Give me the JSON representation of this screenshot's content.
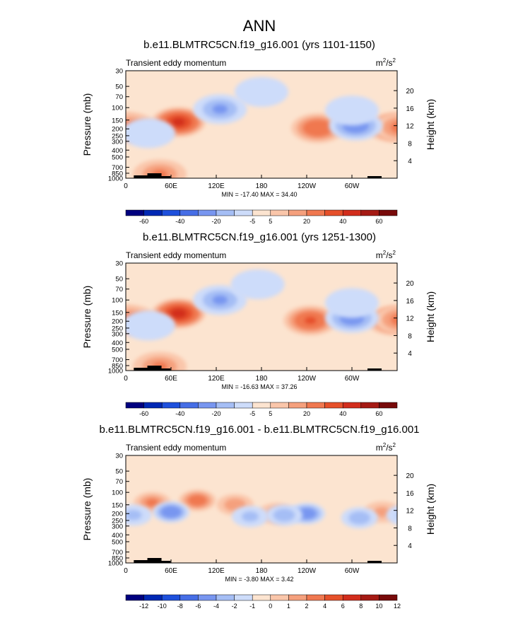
{
  "title": "ANN",
  "chart_data": [
    {
      "type": "heatmap",
      "title": "b.e11.BLMTRC5CN.f19_g16.001 (yrs 1101-1150)",
      "subtitle_left": "Transient eddy momentum",
      "units": "m",
      "units_exp": "2",
      "units_den": "/s",
      "units_den_exp": "2",
      "ylabel": "Pressure (mb)",
      "ylabel_right": "Height (km)",
      "x_ticks": [
        "0",
        "60E",
        "120E",
        "180",
        "120W",
        "60W"
      ],
      "y_ticks": [
        "30",
        "50",
        "70",
        "100",
        "150",
        "200",
        "250",
        "300",
        "400",
        "500",
        "700",
        "850",
        "1000"
      ],
      "y2_ticks": [
        "20",
        "16",
        "12",
        "8",
        "4"
      ],
      "minmax_text": "MIN = -17.40  MAX = 34.40",
      "min": -17.4,
      "max": 34.4,
      "colorbar_labels": [
        "-60",
        "-40",
        "-20",
        "-5",
        "5",
        "20",
        "40",
        "60"
      ],
      "blobs": [
        {
          "lon": 70,
          "p": 160,
          "v": 34
        },
        {
          "lon": 255,
          "p": 195,
          "v": 20
        },
        {
          "lon": 355,
          "p": 190,
          "v": 24
        },
        {
          "lon": 5,
          "p": 190,
          "v": 14
        },
        {
          "lon": 45,
          "p": 880,
          "v": 12
        },
        {
          "lon": 125,
          "p": 105,
          "v": -12
        },
        {
          "lon": 305,
          "p": 180,
          "v": -17
        },
        {
          "lon": 30,
          "p": 230,
          "v": -5
        },
        {
          "lon": 180,
          "p": 60,
          "v": -4
        },
        {
          "lon": 300,
          "p": 110,
          "v": -5
        }
      ]
    },
    {
      "type": "heatmap",
      "title": "b.e11.BLMTRC5CN.f19_g16.001 (yrs 1251-1300)",
      "subtitle_left": "Transient eddy momentum",
      "units": "m",
      "units_exp": "2",
      "units_den": "/s",
      "units_den_exp": "2",
      "ylabel": "Pressure (mb)",
      "ylabel_right": "Height (km)",
      "x_ticks": [
        "0",
        "60E",
        "120E",
        "180",
        "120W",
        "60W"
      ],
      "y_ticks": [
        "30",
        "50",
        "70",
        "100",
        "150",
        "200",
        "250",
        "300",
        "400",
        "500",
        "700",
        "850",
        "1000"
      ],
      "y2_ticks": [
        "20",
        "16",
        "12",
        "8",
        "4"
      ],
      "minmax_text": "MIN = -16.63  MAX = 37.26",
      "min": -16.63,
      "max": 37.26,
      "colorbar_labels": [
        "-60",
        "-40",
        "-20",
        "-5",
        "5",
        "20",
        "40",
        "60"
      ],
      "blobs": [
        {
          "lon": 70,
          "p": 155,
          "v": 37
        },
        {
          "lon": 245,
          "p": 195,
          "v": 22
        },
        {
          "lon": 355,
          "p": 195,
          "v": 24
        },
        {
          "lon": 5,
          "p": 190,
          "v": 14
        },
        {
          "lon": 45,
          "p": 880,
          "v": 12
        },
        {
          "lon": 125,
          "p": 100,
          "v": -12
        },
        {
          "lon": 300,
          "p": 180,
          "v": -16
        },
        {
          "lon": 30,
          "p": 230,
          "v": -5
        },
        {
          "lon": 175,
          "p": 60,
          "v": -4
        },
        {
          "lon": 300,
          "p": 110,
          "v": -5
        }
      ]
    },
    {
      "type": "heatmap",
      "title": "b.e11.BLMTRC5CN.f19_g16.001 - b.e11.BLMTRC5CN.f19_g16.001",
      "subtitle_left": "Transient eddy momentum",
      "units": "m",
      "units_exp": "2",
      "units_den": "/s",
      "units_den_exp": "2",
      "ylabel": "Pressure (mb)",
      "ylabel_right": "Height (km)",
      "x_ticks": [
        "0",
        "60E",
        "120E",
        "180",
        "120W",
        "60W"
      ],
      "y_ticks": [
        "30",
        "50",
        "70",
        "100",
        "150",
        "200",
        "250",
        "300",
        "400",
        "500",
        "700",
        "850",
        "1000"
      ],
      "y2_ticks": [
        "20",
        "16",
        "12",
        "8",
        "4"
      ],
      "minmax_text": "MIN = -3.80  MAX = 3.42",
      "min": -3.8,
      "max": 3.42,
      "colorbar_labels": [
        "-12",
        "-10",
        "-8",
        "-6",
        "-4",
        "-2",
        "-1",
        "0",
        "1",
        "2",
        "4",
        "6",
        "8",
        "10",
        "12"
      ],
      "blobs": [
        {
          "lon": 95,
          "p": 130,
          "v": 3.4
        },
        {
          "lon": 35,
          "p": 140,
          "v": 2.5
        },
        {
          "lon": 145,
          "p": 150,
          "v": 2.0
        },
        {
          "lon": 200,
          "p": 200,
          "v": 2.0
        },
        {
          "lon": 340,
          "p": 190,
          "v": 1.5
        },
        {
          "lon": 60,
          "p": 190,
          "v": -3.8
        },
        {
          "lon": 240,
          "p": 200,
          "v": -3.5
        },
        {
          "lon": 210,
          "p": 210,
          "v": -2.0
        },
        {
          "lon": 310,
          "p": 230,
          "v": -2.0
        },
        {
          "lon": 10,
          "p": 210,
          "v": -1.5
        },
        {
          "lon": 165,
          "p": 220,
          "v": -1.5
        }
      ]
    }
  ],
  "palette": [
    "#00007f",
    "#0028b4",
    "#1e50dc",
    "#466ee6",
    "#7896f0",
    "#a5bef5",
    "#cddcfa",
    "#fce4d0",
    "#fac6aa",
    "#f5a07d",
    "#f07850",
    "#e6502a",
    "#d22d1c",
    "#a51a14",
    "#780a0a"
  ]
}
